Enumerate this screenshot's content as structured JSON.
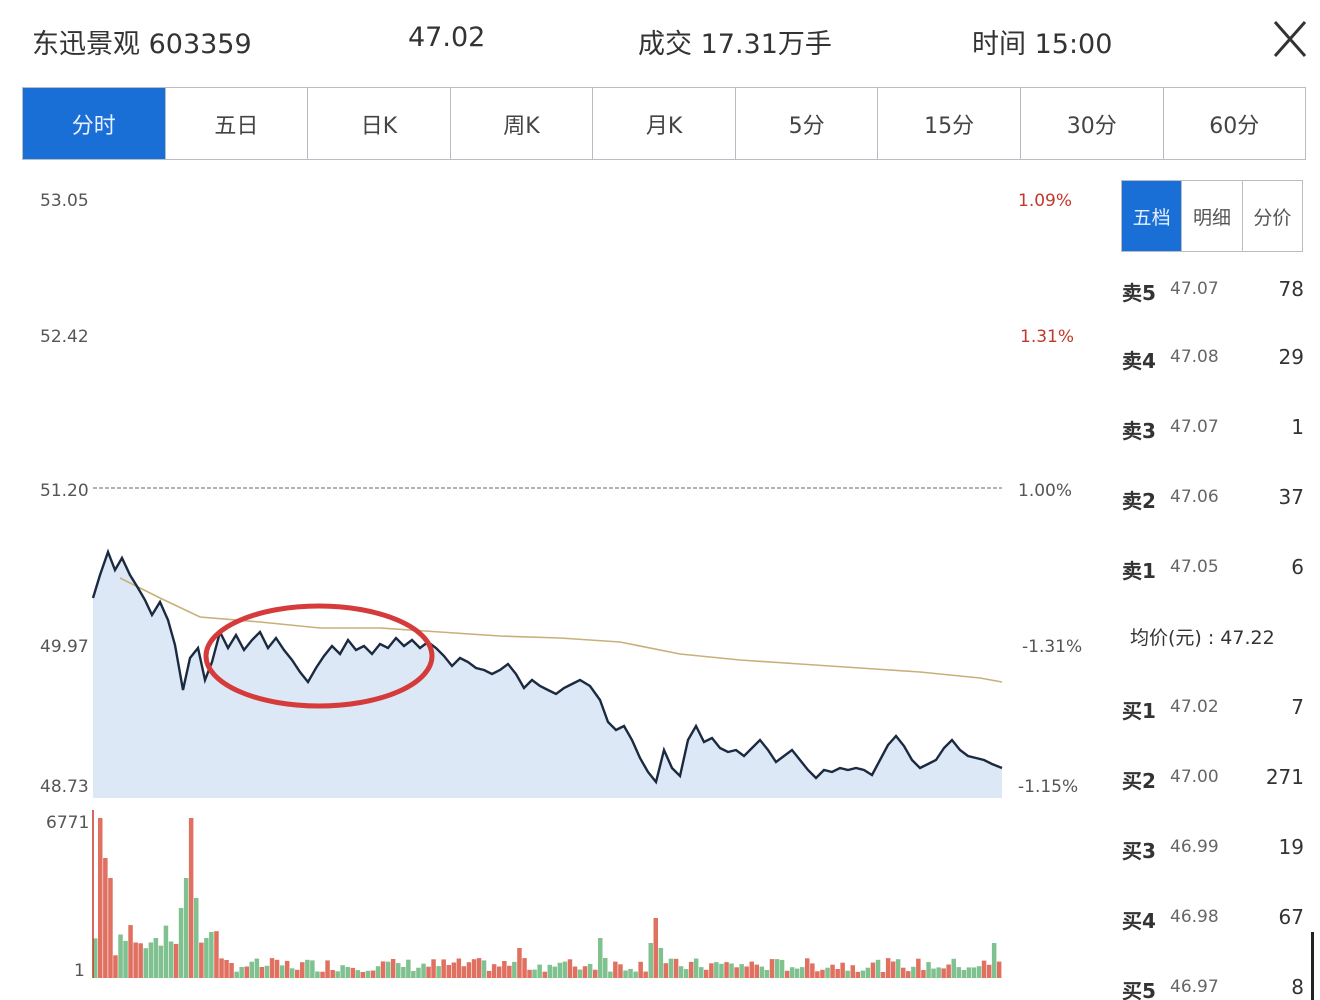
{
  "header": {
    "stock": "东迅景观 603359",
    "price": "47.02",
    "volume": "成交 17.31万手",
    "time": "时间 15:00",
    "close_symbol": "X"
  },
  "tabs": [
    "分时",
    "五日",
    "日K",
    "周K",
    "月K",
    "5分",
    "15分",
    "30分",
    "60分"
  ],
  "active_tab": 0,
  "chart": {
    "left_axis": [
      "53.05",
      "52.42",
      "51.20",
      "49.97",
      "48.73"
    ],
    "right_axis": [
      "1.09%",
      "1.31%",
      "1.00%",
      "-1.31%",
      "-1.15%"
    ],
    "volume_top": "6771",
    "volume_bottom": "1",
    "baseline_color": "#999999",
    "price_color": "#1b2a40",
    "avg_color": "#c8b07a",
    "area_color": "#dde8f6",
    "highlight_color": "#d63b3b"
  },
  "side_tabs": [
    "五档",
    "明细",
    "分价"
  ],
  "side_active": 0,
  "asks": [
    {
      "label": "卖5",
      "price": "47.07",
      "vol": "78"
    },
    {
      "label": "卖4",
      "price": "47.08",
      "vol": "29"
    },
    {
      "label": "卖3",
      "price": "47.07",
      "vol": "1"
    },
    {
      "label": "卖2",
      "price": "47.06",
      "vol": "37"
    },
    {
      "label": "卖1",
      "price": "47.05",
      "vol": "6"
    }
  ],
  "average": "均价(元) : 47.22",
  "bids": [
    {
      "label": "买1",
      "price": "47.02",
      "vol": "7"
    },
    {
      "label": "买2",
      "price": "47.00",
      "vol": "271"
    },
    {
      "label": "买3",
      "price": "46.99",
      "vol": "19"
    },
    {
      "label": "买4",
      "price": "46.98",
      "vol": "67"
    },
    {
      "label": "买5",
      "price": "46.97",
      "vol": "8"
    }
  ]
}
